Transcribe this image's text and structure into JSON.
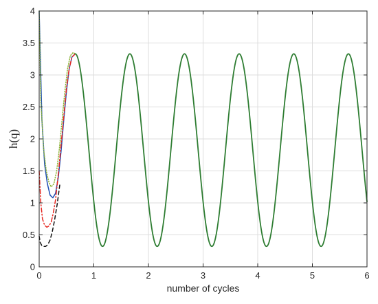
{
  "chart_data": {
    "type": "line",
    "xlabel": "number of cycles",
    "ylabel": "h(q)",
    "xlim": [
      0,
      6
    ],
    "ylim": [
      0,
      4
    ],
    "xticks": [
      0,
      1,
      2,
      3,
      4,
      5,
      6
    ],
    "yticks": [
      0,
      0.5,
      1,
      1.5,
      2,
      2.5,
      3,
      3.5,
      4
    ],
    "grid": true,
    "steady_state": {
      "period": 1,
      "max": 3.33,
      "min": 0.32,
      "peaks_x": [
        0.66,
        1.66,
        2.66,
        3.66,
        4.66,
        5.66
      ],
      "troughs_x": [
        1.1,
        2.1,
        3.1,
        4.1,
        5.1
      ]
    },
    "series": [
      {
        "color": "#1f4fb4",
        "style": "solid",
        "x": [
          0,
          0.05,
          0.1,
          0.15,
          0.2,
          0.25,
          0.3,
          0.35,
          0.4,
          0.45,
          0.5,
          0.55,
          0.6,
          0.66
        ],
        "y": [
          4.0,
          2.3,
          1.6,
          1.3,
          1.12,
          1.08,
          1.15,
          1.4,
          1.8,
          2.3,
          2.75,
          3.1,
          3.28,
          3.33
        ]
      },
      {
        "color": "#8db43a",
        "style": "dotted",
        "x": [
          0,
          0.03,
          0.08,
          0.13,
          0.18,
          0.22,
          0.27,
          0.32,
          0.37,
          0.42,
          0.47,
          0.52,
          0.57,
          0.62,
          0.66
        ],
        "y": [
          4.0,
          2.6,
          1.85,
          1.5,
          1.32,
          1.25,
          1.3,
          1.5,
          1.85,
          2.3,
          2.75,
          3.1,
          3.3,
          3.35,
          3.33
        ]
      },
      {
        "color": "#e6261f",
        "style": "dashdot",
        "x": [
          0,
          0.03,
          0.06,
          0.1,
          0.14,
          0.18,
          0.22,
          0.26,
          0.3,
          0.35,
          0.4,
          0.45,
          0.5,
          0.55,
          0.6,
          0.66
        ],
        "y": [
          1.5,
          1.0,
          0.75,
          0.65,
          0.62,
          0.64,
          0.7,
          0.85,
          1.05,
          1.45,
          1.9,
          2.35,
          2.8,
          3.1,
          3.28,
          3.33
        ]
      },
      {
        "color": "#111111",
        "style": "dashed",
        "x": [
          0,
          0.02,
          0.05,
          0.08,
          0.12,
          0.16,
          0.2,
          0.24,
          0.28,
          0.33,
          0.38
        ],
        "y": [
          0.48,
          0.38,
          0.33,
          0.32,
          0.32,
          0.35,
          0.42,
          0.55,
          0.72,
          0.98,
          1.3
        ]
      },
      {
        "color": "#2e7d32",
        "style": "solid",
        "steady": true,
        "x_start": 0.66,
        "x_end": 6
      }
    ]
  }
}
